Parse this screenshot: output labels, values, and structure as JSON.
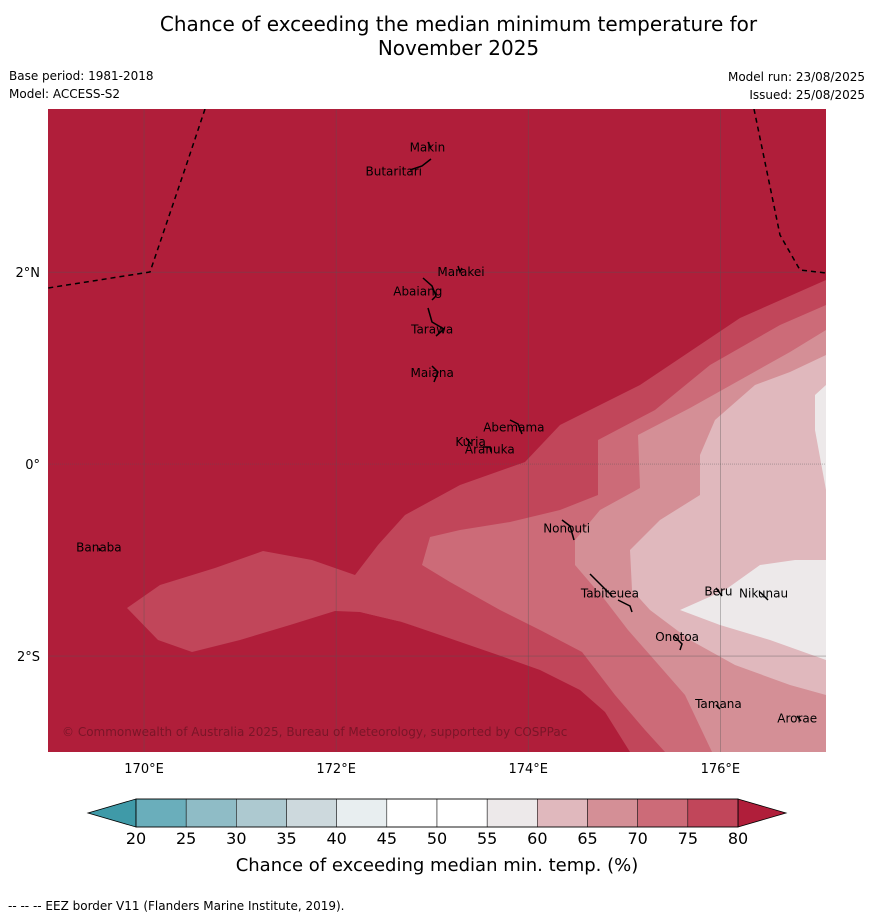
{
  "title": "Chance of exceeding the median minimum temperature for November 2025",
  "title_line1": "Chance of exceeding the median minimum temperature for",
  "title_line2": "November 2025",
  "meta": {
    "base_period": "Base period: 1981-2018",
    "model": "Model: ACCESS-S2",
    "model_run": "Model run: 23/08/2025",
    "issued": "Issued: 25/08/2025"
  },
  "map": {
    "lon_range": [
      169,
      177.1
    ],
    "lat_range": [
      -3,
      3.7
    ],
    "longitude_ticks": [
      {
        "value": 170,
        "label": "170°E"
      },
      {
        "value": 172,
        "label": "172°E"
      },
      {
        "value": 174,
        "label": "174°E"
      },
      {
        "value": 176,
        "label": "176°E"
      }
    ],
    "latitude_ticks": [
      {
        "value": 2,
        "label": "2°N"
      },
      {
        "value": 0,
        "label": "0°"
      },
      {
        "value": -2,
        "label": "2°S"
      }
    ],
    "places": [
      {
        "name": "Makin",
        "lon": 172.95,
        "lat": 3.3
      },
      {
        "name": "Butaritari",
        "lon": 172.6,
        "lat": 3.05
      },
      {
        "name": "Marakei",
        "lon": 173.3,
        "lat": 2.0
      },
      {
        "name": "Abaiang",
        "lon": 172.85,
        "lat": 1.8
      },
      {
        "name": "Tarawa",
        "lon": 173.0,
        "lat": 1.4
      },
      {
        "name": "Maiana",
        "lon": 173.0,
        "lat": 0.95
      },
      {
        "name": "Abemama",
        "lon": 173.85,
        "lat": 0.38
      },
      {
        "name": "Kuria",
        "lon": 173.4,
        "lat": 0.23
      },
      {
        "name": "Aranuka",
        "lon": 173.6,
        "lat": 0.15
      },
      {
        "name": "Nonouti",
        "lon": 174.4,
        "lat": -0.67
      },
      {
        "name": "Banaba",
        "lon": 169.53,
        "lat": -0.87
      },
      {
        "name": "Tabiteuea",
        "lon": 174.85,
        "lat": -1.35
      },
      {
        "name": "Beru",
        "lon": 175.98,
        "lat": -1.33
      },
      {
        "name": "Nikunau",
        "lon": 176.45,
        "lat": -1.35
      },
      {
        "name": "Onotoa",
        "lon": 175.55,
        "lat": -1.8
      },
      {
        "name": "Tamana",
        "lon": 175.98,
        "lat": -2.5
      },
      {
        "name": "Arorae",
        "lon": 176.8,
        "lat": -2.65
      }
    ],
    "copyright": "© Commonwealth of Australia 2025, Bureau of Meteorology, supported by COSPPac"
  },
  "colors": {
    "above_80": "#b01e3a",
    "75_80": "#c1465a",
    "70_75": "#cc6b78",
    "65_70": "#d48f96",
    "60_65": "#e0b8bd",
    "55_60": "#ede9ea",
    "eez": "#000000"
  },
  "colorbar": {
    "title": "Chance of exceeding median min. temp. (%)",
    "ticks": [
      20,
      25,
      30,
      35,
      40,
      45,
      50,
      55,
      60,
      65,
      70,
      75,
      80
    ],
    "bins": [
      {
        "from": 20,
        "to": 25,
        "color": "#6aaebb"
      },
      {
        "from": 25,
        "to": 30,
        "color": "#8fbcc6"
      },
      {
        "from": 30,
        "to": 35,
        "color": "#adc9d0"
      },
      {
        "from": 35,
        "to": 40,
        "color": "#cdd9dd"
      },
      {
        "from": 40,
        "to": 45,
        "color": "#e8eef0"
      },
      {
        "from": 45,
        "to": 50,
        "color": "#ffffff"
      },
      {
        "from": 50,
        "to": 55,
        "color": "#ffffff"
      },
      {
        "from": 55,
        "to": 60,
        "color": "#ede9ea"
      },
      {
        "from": 60,
        "to": 65,
        "color": "#e0b8bd"
      },
      {
        "from": 65,
        "to": 70,
        "color": "#d48f96"
      },
      {
        "from": 70,
        "to": 75,
        "color": "#cc6b78"
      },
      {
        "from": 75,
        "to": 80,
        "color": "#c1465a"
      }
    ],
    "below_color": "#3f9aa8",
    "above_color": "#b01e3a"
  },
  "footnote": "--  --  -- EEZ border V11 (Flanders Marine Institute, 2019)."
}
